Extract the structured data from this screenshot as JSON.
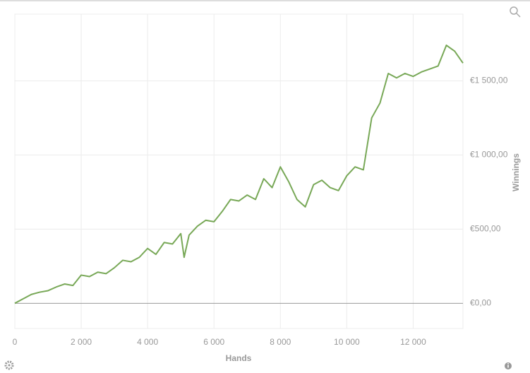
{
  "chart_data": {
    "type": "line",
    "x_label": "Hands",
    "y_label": "Winnings",
    "x": [
      0,
      250,
      500,
      750,
      1000,
      1250,
      1500,
      1750,
      2000,
      2250,
      2500,
      2750,
      3000,
      3250,
      3500,
      3750,
      4000,
      4250,
      4500,
      4750,
      5000,
      5100,
      5250,
      5500,
      5750,
      6000,
      6250,
      6500,
      6750,
      7000,
      7250,
      7500,
      7750,
      8000,
      8250,
      8500,
      8750,
      9000,
      9250,
      9500,
      9750,
      10000,
      10250,
      10500,
      10750,
      11000,
      11250,
      11500,
      11750,
      12000,
      12250,
      12500,
      12750,
      13000,
      13250,
      13500
    ],
    "values": [
      0,
      30,
      60,
      75,
      85,
      110,
      130,
      120,
      190,
      180,
      210,
      200,
      240,
      290,
      280,
      310,
      370,
      330,
      410,
      400,
      470,
      310,
      460,
      520,
      560,
      550,
      620,
      700,
      690,
      730,
      700,
      840,
      780,
      920,
      820,
      700,
      650,
      800,
      830,
      780,
      760,
      860,
      920,
      900,
      1250,
      1350,
      1550,
      1520,
      1550,
      1530,
      1560,
      1580,
      1600,
      1740,
      1700,
      1620
    ],
    "color": "#78a857",
    "xlim": [
      0,
      13500
    ],
    "ylim": [
      -170,
      1950
    ],
    "xticks": [
      0,
      {
        "value": 2000,
        "label": "2 000"
      },
      {
        "value": 4000,
        "label": "4 000"
      },
      {
        "value": 6000,
        "label": "6 000"
      },
      {
        "value": 8000,
        "label": "8 000"
      },
      {
        "value": 10000,
        "label": "10 000"
      },
      {
        "value": 12000,
        "label": "12 000"
      }
    ],
    "yticks": [
      {
        "value": 0,
        "label": "€0,00"
      },
      {
        "value": 500,
        "label": "€500,00"
      },
      {
        "value": 1000,
        "label": "€1 000,00"
      },
      {
        "value": 1500,
        "label": "€1 500,00"
      }
    ],
    "grid": true
  }
}
